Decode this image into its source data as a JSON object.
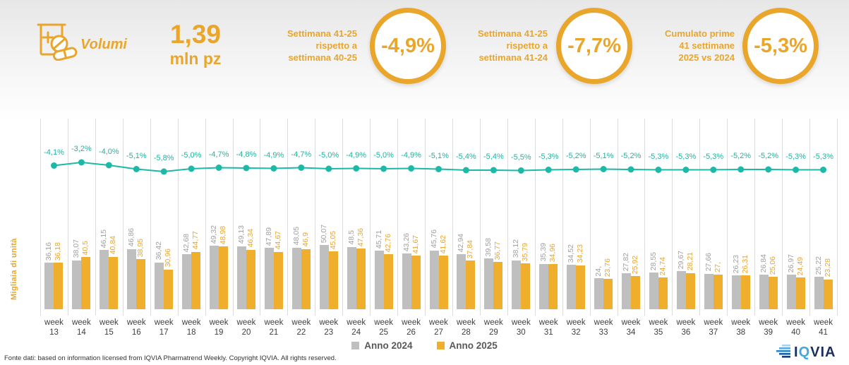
{
  "header": {
    "metric_label": "Volumi",
    "total_value": "1,39",
    "total_unit": "mln pz",
    "kpis": [
      {
        "label": "Settimana 41-25\nrispetto a\nsettimana 40-25",
        "value": "-4,9%"
      },
      {
        "label": "Settimana 41-25\nrispetto a\nsettimana 41-24",
        "value": "-7,7%"
      },
      {
        "label": "Cumulato prime\n41 settimane\n2025 vs 2024",
        "value": "-5,3%"
      }
    ],
    "accent_color": "#EAA62B"
  },
  "chart_data": {
    "type": "bar",
    "subtype": "grouped-bars-with-percent-line",
    "ylabel": "Migliaia di unità",
    "ylim": [
      0,
      60
    ],
    "grid": "vertical-only",
    "legend_position": "bottom",
    "categories": [
      "week 13",
      "week 14",
      "week 15",
      "week 16",
      "week 17",
      "week 18",
      "week 19",
      "week 20",
      "week 21",
      "week 22",
      "week 23",
      "week 24",
      "week 25",
      "week 26",
      "week 27",
      "week 28",
      "week 29",
      "week 30",
      "week 31",
      "week 32",
      "week 33",
      "week 34",
      "week 35",
      "week 36",
      "week 37",
      "week 38",
      "week 39",
      "week 40",
      "week 41"
    ],
    "series": [
      {
        "name": "Anno 2024",
        "color": "#BFBFBF",
        "label_color": "#A0A0A0",
        "values": [
          36.16,
          38.07,
          46.15,
          46.86,
          36.42,
          42.68,
          49.32,
          49.13,
          47.89,
          48.05,
          50.07,
          48.5,
          45.71,
          43.26,
          45.76,
          42.94,
          39.58,
          38.12,
          35.39,
          34.52,
          24.0,
          27.82,
          28.55,
          29.67,
          27.66,
          26.23,
          26.84,
          26.97,
          25.22
        ],
        "labels": [
          "36,16",
          "38,07",
          "46,15",
          "46,86",
          "36,42",
          "42,68",
          "49,32",
          "49,13",
          "47,89",
          "48,05",
          "50,07",
          "48,5",
          "45,71",
          "43,26",
          "45,76",
          "42,94",
          "39,58",
          "38,12",
          "35,39",
          "34,52",
          "24,",
          "27,82",
          "28,55",
          "29,67",
          "27,66",
          "26,23",
          "26,84",
          "26,97",
          "25,22"
        ]
      },
      {
        "name": "Anno 2025",
        "color": "#EFAF2D",
        "label_color": "#E9A62B",
        "values": [
          36.18,
          40.5,
          40.84,
          38.95,
          30.96,
          44.77,
          48.98,
          46.34,
          44.67,
          46.9,
          45.05,
          47.36,
          42.76,
          41.67,
          41.62,
          37.84,
          36.77,
          35.79,
          34.96,
          34.23,
          23.76,
          25.92,
          24.74,
          28.21,
          27.0,
          26.31,
          25.06,
          24.49,
          23.28
        ],
        "labels": [
          "36,18",
          "40,5",
          "40,84",
          "38,95",
          "30,96",
          "44,77",
          "48,98",
          "46,34",
          "44,67",
          "46,9",
          "45,05",
          "47,36",
          "42,76",
          "41,67",
          "41,62",
          "37,84",
          "36,77",
          "35,79",
          "34,96",
          "34,23",
          "23,76",
          "25,92",
          "24,74",
          "28,21",
          "27,",
          "26,31",
          "25,06",
          "24,49",
          "23,28"
        ]
      }
    ],
    "line_series": {
      "color": "#1CB9A8",
      "values": [
        -4.1,
        -3.2,
        -4.0,
        -5.1,
        -5.8,
        -5.0,
        -4.7,
        -4.8,
        -4.9,
        -4.7,
        -5.0,
        -4.9,
        -5.0,
        -4.9,
        -5.1,
        -5.4,
        -5.4,
        -5.5,
        -5.3,
        -5.2,
        -5.1,
        -5.2,
        -5.3,
        -5.3,
        -5.3,
        -5.2,
        -5.2,
        -5.3,
        -5.3
      ],
      "labels": [
        "-4,1%",
        "-3,2%",
        "-4,0%",
        "-5,1%",
        "-5,8%",
        "-5,0%",
        "-4,7%",
        "-4,8%",
        "-4,9%",
        "-4,7%",
        "-5,0%",
        "-4,9%",
        "-5,0%",
        "-4,9%",
        "-5,1%",
        "-5,4%",
        "-5,4%",
        "-5,5%",
        "-5,3%",
        "-5,2%",
        "-5,1%",
        "-5,2%",
        "-5,3%",
        "-5,3%",
        "-5,3%",
        "-5,2%",
        "-5,2%",
        "-5,3%",
        "-5,3%"
      ]
    }
  },
  "legend": [
    {
      "label": "Anno 2024",
      "color": "#BFBFBF"
    },
    {
      "label": "Anno 2025",
      "color": "#EFAF2D"
    }
  ],
  "footer": {
    "source": "Fonte dati: based on information licensed from IQVIA Pharmatrend Weekly. Copyright IQVIA. All rights reserved."
  },
  "logo": {
    "text": "IQVIA"
  }
}
